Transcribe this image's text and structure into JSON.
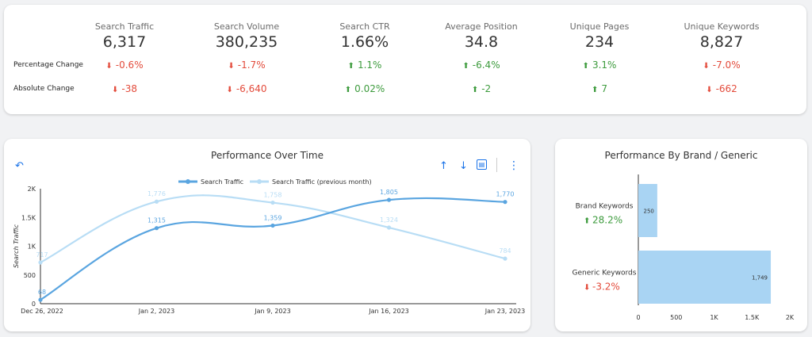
{
  "kpis": {
    "row_labels": {
      "percentage": "Percentage Change",
      "absolute": "Absolute Change"
    },
    "metrics": [
      {
        "title": "Search Traffic",
        "value": "6,317",
        "pct": "-0.6%",
        "pct_dir": "down",
        "abs": "-38",
        "abs_dir": "down"
      },
      {
        "title": "Search Volume",
        "value": "380,235",
        "pct": "-1.7%",
        "pct_dir": "down",
        "abs": "-6,640",
        "abs_dir": "down"
      },
      {
        "title": "Search CTR",
        "value": "1.66%",
        "pct": "1.1%",
        "pct_dir": "up",
        "abs": "0.02%",
        "abs_dir": "up"
      },
      {
        "title": "Average Position",
        "value": "34.8",
        "pct": "-6.4%",
        "pct_dir": "up",
        "abs": "-2",
        "abs_dir": "up"
      },
      {
        "title": "Unique Pages",
        "value": "234",
        "pct": "3.1%",
        "pct_dir": "up",
        "abs": "7",
        "abs_dir": "up"
      },
      {
        "title": "Unique Keywords",
        "value": "8,827",
        "pct": "-7.0%",
        "pct_dir": "down",
        "abs": "-662",
        "abs_dir": "down"
      }
    ],
    "colors": {
      "up": "#3d9b3d",
      "down": "#e34b3b"
    }
  },
  "perf": {
    "icons": [
      "undo-icon",
      "arrow-up-icon",
      "arrow-down-icon",
      "chart-settings-icon",
      "more-vert-icon"
    ]
  },
  "chart_data": [
    {
      "type": "line",
      "title": "Performance Over Time",
      "ylabel": "Search Traffic",
      "x": [
        "Dec 26, 2022",
        "Jan 2, 2023",
        "Jan 9, 2023",
        "Jan 16, 2023",
        "Jan 23, 2023"
      ],
      "ylim": [
        0,
        2000
      ],
      "yticks": [
        0,
        500,
        1000,
        1500,
        2000
      ],
      "ytick_labels": [
        "0",
        "500",
        "1K",
        "1.5K",
        "2K"
      ],
      "legend_position": "top",
      "series": [
        {
          "name": "Search Traffic",
          "values": [
            68,
            1315,
            1359,
            1805,
            1770
          ],
          "labels": [
            "68",
            "1,315",
            "1,359",
            "1,805",
            "1,770"
          ],
          "color": "#5aa5e0"
        },
        {
          "name": "Search Traffic (previous month)",
          "values": [
            717,
            1776,
            1758,
            1324,
            784
          ],
          "labels": [
            "717",
            "1,776",
            "1,758",
            "1,324",
            "784"
          ],
          "color": "#b8ddf5"
        }
      ]
    },
    {
      "type": "bar",
      "orientation": "horizontal",
      "title": "Performance By Brand / Generic",
      "categories": [
        "Brand Keywords",
        "Generic Keywords"
      ],
      "values": [
        250,
        1749
      ],
      "value_labels": [
        "250",
        "1,749"
      ],
      "changes": [
        {
          "text": "28.2%",
          "dir": "up"
        },
        {
          "text": "-3.2%",
          "dir": "down"
        }
      ],
      "xlim": [
        0,
        2000
      ],
      "xticks": [
        0,
        500,
        1000,
        1500,
        2000
      ],
      "xtick_labels": [
        "0",
        "500",
        "1K",
        "1.5K",
        "2K"
      ],
      "color": "#a9d4f3"
    }
  ]
}
